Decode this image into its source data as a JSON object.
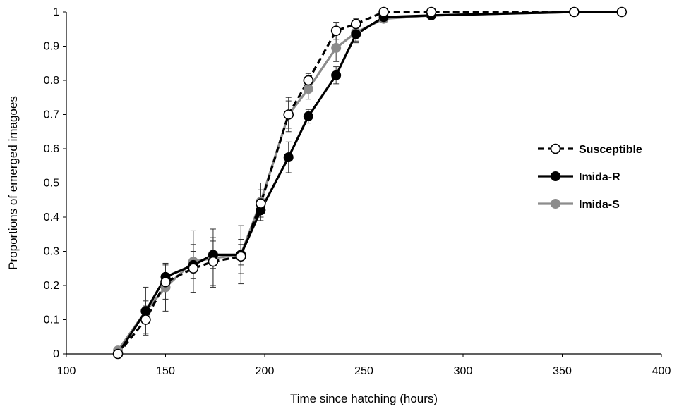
{
  "chart_data": {
    "type": "line",
    "xlabel": "Time since hatching (hours)",
    "ylabel": "Proportions of emerged imagoes",
    "xlim": [
      100,
      400
    ],
    "ylim": [
      0,
      1
    ],
    "xticks": [
      100,
      150,
      200,
      250,
      300,
      350,
      400
    ],
    "yticks": [
      0,
      0.1,
      0.2,
      0.3,
      0.4,
      0.5,
      0.6,
      0.7,
      0.8,
      0.9,
      1
    ],
    "grid": false,
    "legend_position": "right",
    "series": [
      {
        "name": "Susceptible",
        "color": "#000000",
        "line_style": "dashed",
        "marker": "open-circle",
        "x": [
          126,
          140,
          150,
          164,
          174,
          188,
          198,
          212,
          222,
          236,
          246,
          260,
          284,
          356,
          380
        ],
        "y": [
          0.0,
          0.1,
          0.21,
          0.25,
          0.27,
          0.285,
          0.44,
          0.7,
          0.8,
          0.945,
          0.965,
          1.0,
          1.0,
          1.0,
          1.0
        ],
        "err": [
          0,
          0.04,
          0.05,
          0.07,
          0.07,
          0.05,
          0.04,
          0.04,
          0.02,
          0.025,
          0.015,
          0,
          0,
          0,
          0
        ]
      },
      {
        "name": "Imida-R",
        "color": "#000000",
        "line_style": "solid",
        "marker": "filled-circle",
        "x": [
          126,
          140,
          150,
          164,
          174,
          188,
          198,
          212,
          222,
          236,
          246,
          260,
          284,
          356,
          380
        ],
        "y": [
          0.0,
          0.125,
          0.225,
          0.26,
          0.29,
          0.29,
          0.42,
          0.575,
          0.695,
          0.815,
          0.935,
          0.985,
          0.99,
          1.0,
          1.0
        ],
        "err": [
          0,
          0.03,
          0.04,
          0.04,
          0.04,
          0.03,
          0.02,
          0.045,
          0.02,
          0.025,
          0.02,
          0.01,
          0,
          0,
          0
        ]
      },
      {
        "name": "Imida-S",
        "color": "#8c8c8c",
        "line_style": "solid",
        "marker": "filled-circle",
        "x": [
          126,
          140,
          150,
          164,
          174,
          188,
          198,
          212,
          222,
          236,
          246,
          260,
          284,
          356,
          380
        ],
        "y": [
          0.01,
          0.125,
          0.195,
          0.27,
          0.28,
          0.29,
          0.445,
          0.7,
          0.775,
          0.895,
          0.94,
          0.98,
          0.99,
          1.0,
          1.0
        ],
        "err": [
          0,
          0.07,
          0.07,
          0.09,
          0.085,
          0.085,
          0.055,
          0.05,
          0.03,
          0.04,
          0.03,
          0.01,
          0,
          0,
          0
        ]
      }
    ]
  }
}
